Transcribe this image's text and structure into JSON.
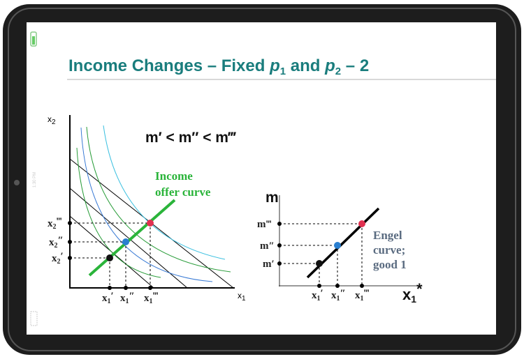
{
  "bezel": {
    "time": "1:30 PM"
  },
  "title": {
    "lead": "Income Changes – Fixed ",
    "p1": "p",
    "p1_sub": "1",
    "mid": " and ",
    "p2": "p",
    "p2_sub": "2",
    "end": " – 2"
  },
  "left_diagram": {
    "y_axis": {
      "x": "x",
      "sub": "2"
    },
    "x_axis": {
      "x": "x",
      "sub": "1"
    },
    "inequality": "m′ < m″ < m‴",
    "offer_curve_label": [
      "Income",
      "offer curve"
    ],
    "y_labels": [
      {
        "x": "x",
        "sub": "2",
        "mark": "‴"
      },
      {
        "x": "x",
        "sub": "2",
        "mark": "″"
      },
      {
        "x": "x",
        "sub": "2",
        "mark": "′"
      }
    ],
    "x_labels": [
      {
        "x": "x",
        "sub": "1",
        "mark": "′"
      },
      {
        "x": "x",
        "sub": "1",
        "mark": "″"
      },
      {
        "x": "x",
        "sub": "1",
        "mark": "‴"
      }
    ]
  },
  "right_diagram": {
    "y_axis": "m",
    "x_axis": {
      "x": "x",
      "sub": "1",
      "mark": "*"
    },
    "y_labels": [
      "m‴",
      "m″",
      "m′"
    ],
    "x_labels": [
      {
        "x": "x",
        "sub": "1",
        "mark": "′"
      },
      {
        "x": "x",
        "sub": "1",
        "mark": "″"
      },
      {
        "x": "x",
        "sub": "1",
        "mark": "‴"
      }
    ],
    "engel_label": [
      "Engel",
      "curve;",
      "good 1"
    ]
  }
}
